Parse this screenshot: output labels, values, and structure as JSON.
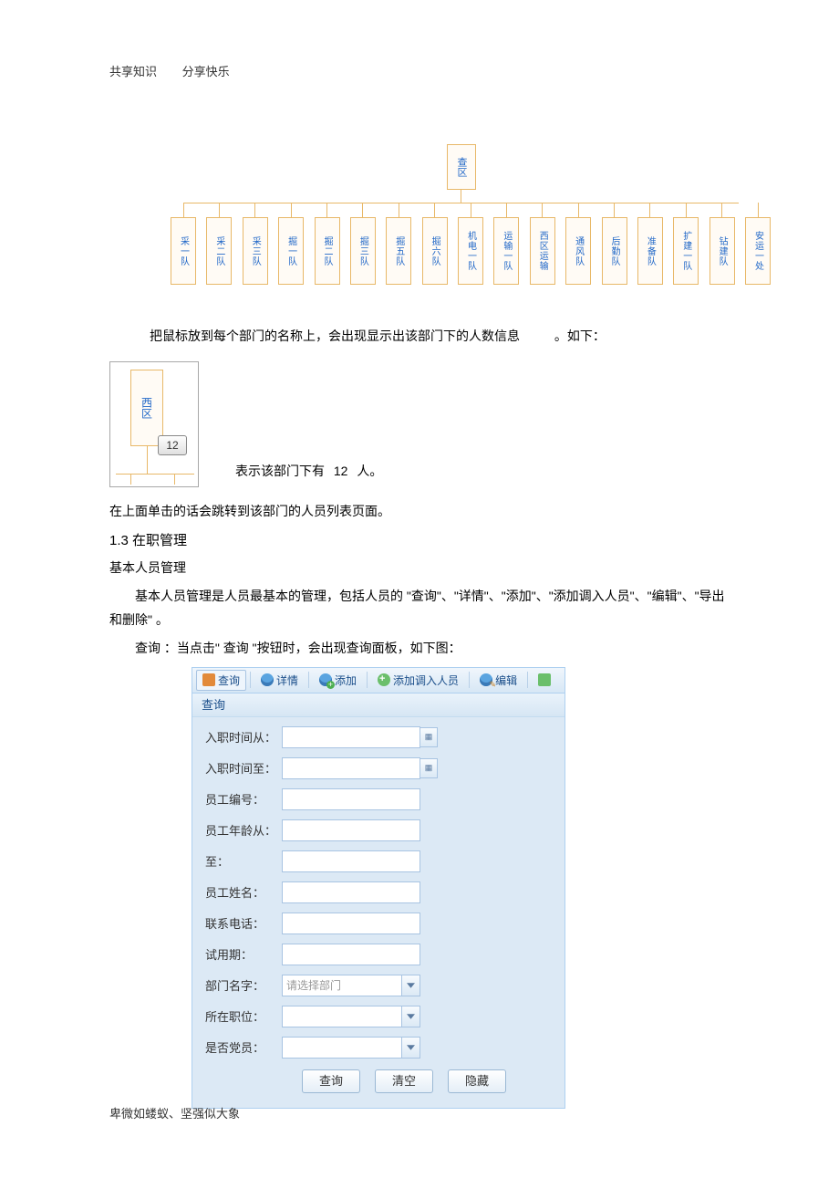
{
  "header": {
    "left": "共享知识",
    "right": "分享快乐"
  },
  "footer": {
    "text": "卑微如蝼蚁、坚强似大象"
  },
  "org": {
    "top": "查区",
    "departments": [
      "采一队",
      "采二队",
      "采三队",
      "掘一队",
      "掘二队",
      "掘三队",
      "掘五队",
      "掘六队",
      "机电一队",
      "运输一队",
      "西区运输",
      "通风队",
      "后勤队",
      "准备队",
      "扩建一队",
      "钻建队",
      "安运一处"
    ],
    "top_border": "#e8b868",
    "box_bg": "#fffbf5",
    "text_color": "#2268c8"
  },
  "caption1_a": "把鼠标放到每个部门的名称上，会出现显示出该部门下的人数信息",
  "caption1_b": "。如下：",
  "tooltip": {
    "box_label": "西区",
    "badge": "12",
    "explain_a": "表示该部门下有",
    "explain_b": "12",
    "explain_c": "人。"
  },
  "line_nav": "在上面单击的话会跳转到该部门的人员列表页面。",
  "section": {
    "num": "1.3",
    "title": "在职管理"
  },
  "subtitle": "基本人员管理",
  "para1": "基本人员管理是人员最基本的管理，包括人员的 \"查询\"、\"详情\"、\"添加\"、\"添加调入人员\"、\"编辑\"、\"导出和删除\" 。",
  "para2": "查询 ：当点击\" 查询 \"按钮时，会出现查询面板，如下图：",
  "panel": {
    "toolbar": {
      "query": "查询",
      "detail": "详情",
      "add": "添加",
      "transfer": "添加调入人员",
      "edit": "编辑"
    },
    "title": "查询",
    "fields": {
      "entry_from": "入职时间从：",
      "entry_to": "入职时间至：",
      "emp_no": "员工编号：",
      "age_from": "员工年龄从：",
      "age_to": "至：",
      "name": "员工姓名：",
      "phone": "联系电话：",
      "trial": "试用期：",
      "dept": "部门名字：",
      "dept_placeholder": "请选择部门",
      "position": "所在职位：",
      "party": "是否党员："
    },
    "buttons": {
      "search": "查询",
      "clear": "清空",
      "hide": "隐藏"
    },
    "colors": {
      "panel_bg": "#dce9f5",
      "border": "#aed0f0",
      "title_color": "#1a4e8a",
      "input_border": "#a8c4e2"
    }
  }
}
